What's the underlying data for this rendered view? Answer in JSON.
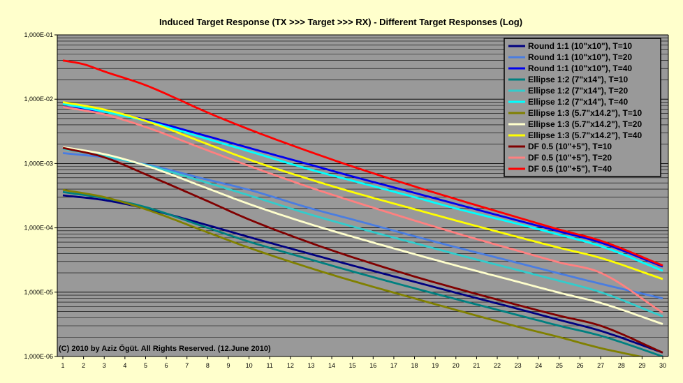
{
  "chart_data": {
    "type": "line",
    "title": "Induced Target Response (TX >>> Target >>> RX)  - Different Target Responses (Log)",
    "annotation": "(C) 2010 by Aziz Ögüt. All Rights Reserved. (12.June 2010)",
    "xlabel": "",
    "ylabel": "",
    "x": [
      1,
      2,
      3,
      4,
      5,
      6,
      7,
      8,
      9,
      10,
      11,
      12,
      13,
      14,
      15,
      16,
      17,
      18,
      19,
      20,
      21,
      22,
      23,
      24,
      25,
      26,
      27,
      28,
      29,
      30
    ],
    "xlim": [
      1,
      30
    ],
    "y_scale": "log",
    "ylim": [
      1e-06,
      0.1
    ],
    "y_tick_values": [
      0.1,
      0.01,
      0.001,
      0.0001,
      1e-05,
      1e-06
    ],
    "y_tick_labels": [
      "1,000E-01",
      "1,000E-02",
      "1,000E-03",
      "1,000E-04",
      "1,000E-05",
      "1,000E-06"
    ],
    "grid": true,
    "legend_position": "top-right",
    "colors": {
      "plot_background": "#999999",
      "page_background": "#ffffcc",
      "gridline": "#000000"
    },
    "series": [
      {
        "name": "Round 1:1 (10\"x10\"), T=10",
        "color": "#000080",
        "anchors": [
          [
            1,
            0.00032
          ],
          [
            3,
            0.00027
          ],
          [
            5,
            0.0002
          ],
          [
            8,
            0.00011
          ],
          [
            10,
            7.2e-05
          ],
          [
            13,
            3.9e-05
          ],
          [
            15,
            2.6e-05
          ],
          [
            18,
            1.45e-05
          ],
          [
            20,
            9.8e-06
          ],
          [
            23,
            5.5e-06
          ],
          [
            25,
            3.7e-06
          ],
          [
            27,
            2.5e-06
          ],
          [
            30,
            1.15e-06
          ]
        ]
      },
      {
        "name": "Round 1:1 (10\"x10\"), T=20",
        "color": "#4a7de0",
        "anchors": [
          [
            1,
            0.00145
          ],
          [
            3,
            0.00125
          ],
          [
            5,
            0.00097
          ],
          [
            8,
            0.00056
          ],
          [
            10,
            0.00039
          ],
          [
            13,
            0.0002
          ],
          [
            15,
            0.000135
          ],
          [
            18,
            7.4e-05
          ],
          [
            20,
            5e-05
          ],
          [
            23,
            2.85e-05
          ],
          [
            25,
            1.95e-05
          ],
          [
            27,
            1.35e-05
          ],
          [
            30,
            8e-06
          ]
        ]
      },
      {
        "name": "Round 1:1 (10\"x10\"), T=40",
        "color": "#0000ee",
        "anchors": [
          [
            1,
            0.0076
          ],
          [
            3,
            0.0064
          ],
          [
            5,
            0.0048
          ],
          [
            8,
            0.00265
          ],
          [
            10,
            0.00175
          ],
          [
            13,
            0.00095
          ],
          [
            15,
            0.00063
          ],
          [
            18,
            0.00035
          ],
          [
            20,
            0.000235
          ],
          [
            23,
            0.00013
          ],
          [
            25,
            8.8e-05
          ],
          [
            27,
            5.9e-05
          ],
          [
            30,
            2.5e-05
          ]
        ]
      },
      {
        "name": "Ellipse 1:2 (7\"x14\"), T=10",
        "color": "#008080",
        "anchors": [
          [
            1,
            0.00036
          ],
          [
            3,
            0.00029
          ],
          [
            5,
            0.00021
          ],
          [
            8,
            0.0001
          ],
          [
            10,
            6.1e-05
          ],
          [
            13,
            3.2e-05
          ],
          [
            15,
            2.1e-05
          ],
          [
            18,
            1.15e-05
          ],
          [
            20,
            7.8e-06
          ],
          [
            23,
            4.4e-06
          ],
          [
            25,
            3e-06
          ],
          [
            27,
            2.1e-06
          ],
          [
            30,
            1e-06
          ]
        ]
      },
      {
        "name": "Ellipse 1:2 (7\"x14\"), T=20",
        "color": "#33cccc",
        "anchors": [
          [
            1,
            0.0017
          ],
          [
            3,
            0.0013
          ],
          [
            5,
            0.00095
          ],
          [
            8,
            0.0005
          ],
          [
            10,
            0.00032
          ],
          [
            13,
            0.00016
          ],
          [
            15,
            0.000105
          ],
          [
            18,
            5.8e-05
          ],
          [
            20,
            3.9e-05
          ],
          [
            23,
            2.2e-05
          ],
          [
            25,
            1.5e-05
          ],
          [
            27,
            1e-05
          ],
          [
            30,
            4.2e-06
          ]
        ]
      },
      {
        "name": "Ellipse 1:2 (7\"x14\"), T=40",
        "color": "#00ffff",
        "anchors": [
          [
            1,
            0.0085
          ],
          [
            3,
            0.0064
          ],
          [
            5,
            0.0046
          ],
          [
            8,
            0.0024
          ],
          [
            10,
            0.00155
          ],
          [
            13,
            0.0008
          ],
          [
            15,
            0.00054
          ],
          [
            18,
            0.0003
          ],
          [
            20,
            0.0002
          ],
          [
            23,
            0.000115
          ],
          [
            25,
            7.8e-05
          ],
          [
            27,
            5.2e-05
          ],
          [
            30,
            2.15e-05
          ]
        ]
      },
      {
        "name": "Ellipse 1:3 (5.7\"x14.2\"), T=10",
        "color": "#808000",
        "anchors": [
          [
            1,
            0.00039
          ],
          [
            3,
            0.0003
          ],
          [
            5,
            0.000195
          ],
          [
            8,
            8.5e-05
          ],
          [
            10,
            4.9e-05
          ],
          [
            13,
            2.35e-05
          ],
          [
            15,
            1.5e-05
          ],
          [
            18,
            8e-06
          ],
          [
            20,
            5.3e-06
          ],
          [
            23,
            2.9e-06
          ],
          [
            25,
            2e-06
          ],
          [
            27,
            1.35e-06
          ],
          [
            30,
            8.5e-07
          ]
        ]
      },
      {
        "name": "Ellipse 1:3 (5.7\"x14.2\"), T=20",
        "color": "#ffffcc",
        "anchors": [
          [
            1,
            0.0018
          ],
          [
            3,
            0.0014
          ],
          [
            5,
            0.00093
          ],
          [
            8,
            0.00041
          ],
          [
            10,
            0.000235
          ],
          [
            13,
            0.000113
          ],
          [
            15,
            7.3e-05
          ],
          [
            18,
            3.9e-05
          ],
          [
            20,
            2.6e-05
          ],
          [
            23,
            1.45e-05
          ],
          [
            25,
            9.8e-06
          ],
          [
            27,
            6.8e-06
          ],
          [
            30,
            3.2e-06
          ]
        ]
      },
      {
        "name": "Ellipse 1:3 (5.7\"x14.2\"), T=40",
        "color": "#ffff00",
        "anchors": [
          [
            1,
            0.009
          ],
          [
            3,
            0.0069
          ],
          [
            5,
            0.0046
          ],
          [
            8,
            0.002
          ],
          [
            10,
            0.00115
          ],
          [
            13,
            0.00056
          ],
          [
            15,
            0.00036
          ],
          [
            18,
            0.000195
          ],
          [
            20,
            0.00013
          ],
          [
            23,
            7.2e-05
          ],
          [
            25,
            4.9e-05
          ],
          [
            27,
            3.4e-05
          ],
          [
            30,
            1.6e-05
          ]
        ]
      },
      {
        "name": "DF 0.5 (10\"+5\"), T=10",
        "color": "#800000",
        "anchors": [
          [
            1,
            0.00175
          ],
          [
            3,
            0.00125
          ],
          [
            5,
            0.00068
          ],
          [
            8,
            0.00026
          ],
          [
            10,
            0.000135
          ],
          [
            13,
            5.8e-05
          ],
          [
            15,
            3.5e-05
          ],
          [
            18,
            1.75e-05
          ],
          [
            20,
            1.15e-05
          ],
          [
            23,
            6.3e-06
          ],
          [
            25,
            4.3e-06
          ],
          [
            27,
            3e-06
          ],
          [
            30,
            1.15e-06
          ]
        ]
      },
      {
        "name": "DF 0.5 (10\"+5\"), T=20",
        "color": "#ff8080",
        "anchors": [
          [
            1,
            0.0076
          ],
          [
            3,
            0.0058
          ],
          [
            5,
            0.0037
          ],
          [
            8,
            0.0016
          ],
          [
            10,
            0.00092
          ],
          [
            13,
            0.00042
          ],
          [
            15,
            0.00026
          ],
          [
            18,
            0.00013
          ],
          [
            20,
            8.3e-05
          ],
          [
            23,
            4.4e-05
          ],
          [
            25,
            2.9e-05
          ],
          [
            27,
            2e-05
          ],
          [
            30,
            4.8e-06
          ]
        ]
      },
      {
        "name": "DF 0.5 (10\"+5\"), T=40",
        "color": "#ff0000",
        "anchors": [
          [
            1,
            0.04
          ],
          [
            2,
            0.035
          ],
          [
            3,
            0.027
          ],
          [
            5,
            0.0165
          ],
          [
            8,
            0.0062
          ],
          [
            10,
            0.0034
          ],
          [
            13,
            0.0015
          ],
          [
            15,
            0.0009
          ],
          [
            18,
            0.00044
          ],
          [
            20,
            0.00028
          ],
          [
            23,
            0.000145
          ],
          [
            25,
            9.4e-05
          ],
          [
            27,
            6.3e-05
          ],
          [
            30,
            2.6e-05
          ]
        ]
      }
    ]
  }
}
